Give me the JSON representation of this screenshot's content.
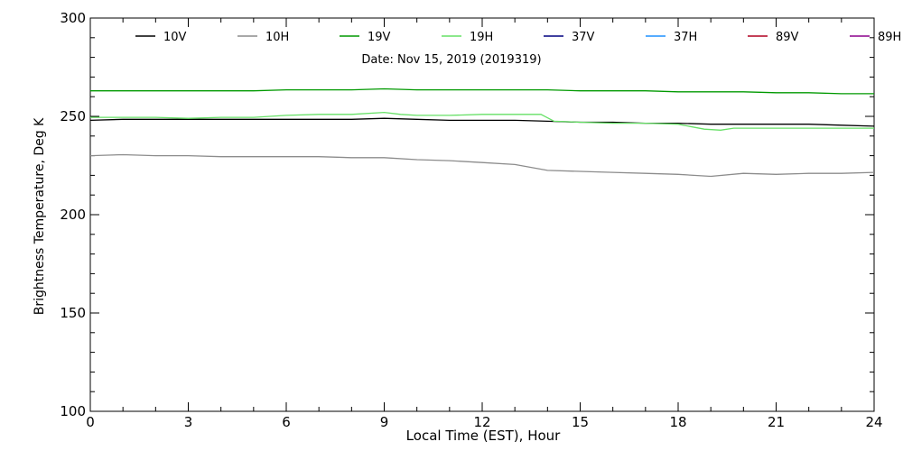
{
  "chart_data": {
    "type": "line",
    "subtitle": "Date: Nov 15, 2019 (2019319)",
    "xlabel": "Local Time (EST), Hour",
    "ylabel": "Brightness Temperature, Deg K",
    "xlim": [
      0,
      24
    ],
    "ylim": [
      100,
      300
    ],
    "x_ticks": [
      0,
      3,
      6,
      9,
      12,
      15,
      18,
      21,
      24
    ],
    "y_ticks": [
      100,
      150,
      200,
      250,
      300
    ],
    "grid": false,
    "legend_position": "top",
    "series": [
      {
        "name": "10V",
        "color": "#000000",
        "x": [
          0,
          1,
          2,
          3,
          4,
          5,
          6,
          7,
          8,
          9,
          10,
          11,
          12,
          13,
          14,
          15,
          16,
          17,
          18,
          19,
          20,
          21,
          22,
          23,
          24
        ],
        "y": [
          248,
          248.5,
          248.5,
          248.5,
          248.5,
          248.5,
          248.5,
          248.5,
          248.5,
          249,
          248.5,
          248,
          248,
          248,
          247.5,
          247,
          247,
          246.5,
          246.5,
          246,
          246,
          246,
          246,
          245.5,
          245
        ]
      },
      {
        "name": "10H",
        "color": "#8c8c8c",
        "x": [
          0,
          1,
          2,
          3,
          4,
          5,
          6,
          7,
          8,
          9,
          10,
          11,
          12,
          13,
          14,
          15,
          16,
          17,
          18,
          19,
          20,
          21,
          22,
          23,
          24
        ],
        "y": [
          230,
          230.5,
          230,
          230,
          229.5,
          229.5,
          229.5,
          229.5,
          229,
          229,
          228,
          227.5,
          226.5,
          225.5,
          222.5,
          222,
          221.5,
          221,
          220.5,
          219.5,
          221,
          220.5,
          221,
          221,
          221.5
        ]
      },
      {
        "name": "19V",
        "color": "#009900",
        "x": [
          0,
          1,
          2,
          3,
          4,
          5,
          6,
          7,
          8,
          9,
          10,
          11,
          12,
          13,
          14,
          15,
          16,
          17,
          18,
          19,
          20,
          21,
          22,
          23,
          24
        ],
        "y": [
          263,
          263,
          263,
          263,
          263,
          263,
          263.5,
          263.5,
          263.5,
          264,
          263.5,
          263.5,
          263.5,
          263.5,
          263.5,
          263,
          263,
          263,
          262.5,
          262.5,
          262.5,
          262,
          262,
          261.5,
          261.5
        ]
      },
      {
        "name": "19H",
        "color": "#66e066",
        "x": [
          0,
          1,
          2,
          3,
          4,
          5,
          6,
          7,
          8,
          9,
          9.5,
          10,
          11,
          12,
          13,
          13.8,
          14.2,
          15,
          16,
          17,
          18,
          18.8,
          19.3,
          19.7,
          20,
          21,
          22,
          23,
          24
        ],
        "y": [
          249.5,
          249.5,
          249.5,
          249,
          249.5,
          249.5,
          250.5,
          251,
          251,
          252,
          251,
          250.5,
          250.5,
          251,
          251,
          251,
          247.5,
          247,
          246.5,
          246.5,
          246,
          243.5,
          243,
          244,
          244,
          244,
          244,
          244,
          244
        ]
      },
      {
        "name": "37V",
        "color": "#000080",
        "x": [],
        "y": []
      },
      {
        "name": "37H",
        "color": "#1e90ff",
        "x": [],
        "y": []
      },
      {
        "name": "89V",
        "color": "#b00020",
        "x": [],
        "y": []
      },
      {
        "name": "89H",
        "color": "#8b008b",
        "x": [],
        "y": []
      }
    ]
  }
}
